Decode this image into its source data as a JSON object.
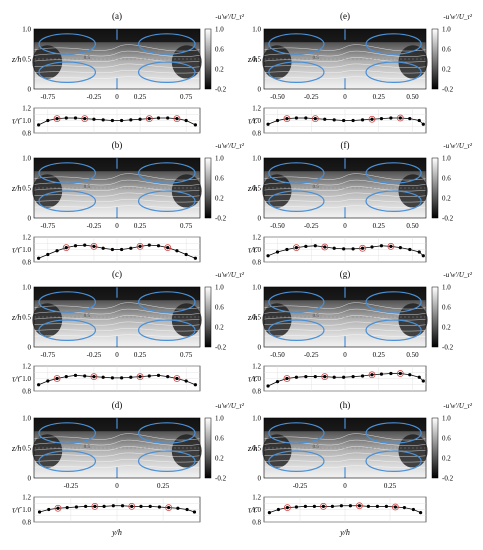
{
  "colors": {
    "vortex_outline": "#4a90d6",
    "marker_edge": "#000000",
    "marker_highlight": "#d23c3c",
    "contour_line": "#ffffff",
    "background": "#ffffff"
  },
  "colorbar": {
    "title": "-u'w'/U_τ²",
    "ticks": [
      "1.0",
      "0.6",
      "0.2",
      "-0.2"
    ],
    "range": [
      -0.2,
      1.0
    ],
    "colormap": "gray"
  },
  "axis_labels": {
    "z": "z/h",
    "ratio": "τ/τ̄",
    "y": "y/h"
  },
  "chart_data": [
    {
      "type": "heatmap",
      "panel": "(a)",
      "xticks": [
        "-0.75",
        "-0.25",
        "0",
        "0.25",
        "0.75"
      ],
      "xtick_values": [
        -0.75,
        -0.25,
        0,
        0.25,
        0.75
      ],
      "xlim": [
        -0.9,
        0.9
      ],
      "zticks": [
        "1.0",
        "0.5",
        "0"
      ],
      "ylim": [
        0,
        1
      ],
      "ratio_ticks": [
        "1.2",
        "1.0",
        "0.8"
      ],
      "ratio_lim": [
        0.8,
        1.2
      ],
      "ratio_x": [
        -0.85,
        -0.75,
        -0.65,
        -0.55,
        -0.45,
        -0.35,
        -0.25,
        -0.15,
        -0.05,
        0.05,
        0.15,
        0.25,
        0.35,
        0.45,
        0.55,
        0.65,
        0.75,
        0.85
      ],
      "ratio_y": [
        0.93,
        1.0,
        1.03,
        1.04,
        1.04,
        1.03,
        1.02,
        1.01,
        1.0,
        1.0,
        1.01,
        1.02,
        1.03,
        1.04,
        1.04,
        1.03,
        1.0,
        0.93
      ],
      "highlight_x": [
        -0.65,
        -0.35,
        0.35,
        0.65
      ],
      "contour_labels": [
        "0.5"
      ]
    },
    {
      "type": "heatmap",
      "panel": "(b)",
      "xticks": [
        "-0.75",
        "-0.25",
        "0",
        "0.25",
        "0.75"
      ],
      "xtick_values": [
        -0.75,
        -0.25,
        0,
        0.25,
        0.75
      ],
      "xlim": [
        -0.9,
        0.9
      ],
      "zticks": [
        "1.0",
        "0.5",
        "0"
      ],
      "ylim": [
        0,
        1
      ],
      "ratio_ticks": [
        "1.2",
        "1.0",
        "0.8"
      ],
      "ratio_lim": [
        0.8,
        1.2
      ],
      "ratio_x": [
        -0.85,
        -0.75,
        -0.65,
        -0.55,
        -0.45,
        -0.35,
        -0.25,
        -0.15,
        -0.05,
        0.05,
        0.15,
        0.25,
        0.35,
        0.45,
        0.55,
        0.65,
        0.75,
        0.85
      ],
      "ratio_y": [
        0.86,
        0.92,
        0.98,
        1.03,
        1.06,
        1.07,
        1.05,
        1.02,
        1.0,
        1.0,
        1.02,
        1.05,
        1.07,
        1.06,
        1.03,
        0.98,
        0.92,
        0.86
      ],
      "highlight_x": [
        -0.55,
        -0.25,
        0.25,
        0.55
      ],
      "contour_labels": [
        "0.5"
      ]
    },
    {
      "type": "heatmap",
      "panel": "(c)",
      "xticks": [
        "-0.75",
        "-0.25",
        "0",
        "0.25",
        "0.75"
      ],
      "xtick_values": [
        -0.75,
        -0.25,
        0,
        0.25,
        0.75
      ],
      "xlim": [
        -0.9,
        0.9
      ],
      "zticks": [
        "1.0",
        "0.5",
        "0"
      ],
      "ylim": [
        0,
        1
      ],
      "ratio_ticks": [
        "1.2",
        "1.0",
        "0.8"
      ],
      "ratio_lim": [
        0.8,
        1.2
      ],
      "ratio_x": [
        -0.85,
        -0.75,
        -0.65,
        -0.55,
        -0.45,
        -0.35,
        -0.25,
        -0.15,
        -0.05,
        0.05,
        0.15,
        0.25,
        0.35,
        0.45,
        0.55,
        0.65,
        0.75,
        0.85
      ],
      "ratio_y": [
        0.9,
        0.96,
        1.0,
        1.03,
        1.05,
        1.04,
        1.03,
        1.02,
        1.01,
        1.01,
        1.02,
        1.03,
        1.04,
        1.05,
        1.03,
        1.0,
        0.96,
        0.9
      ],
      "highlight_x": [
        -0.65,
        -0.25,
        0.25,
        0.65
      ],
      "contour_labels": [
        "0.5"
      ]
    },
    {
      "type": "heatmap",
      "panel": "(d)",
      "xticks": [
        "-0.25",
        "0",
        "0.25"
      ],
      "xtick_values": [
        -0.25,
        0,
        0.25
      ],
      "xlim": [
        -0.45,
        0.45
      ],
      "zticks": [
        "1.0",
        "0.5",
        "0"
      ],
      "ylim": [
        0,
        1
      ],
      "ratio_ticks": [
        "1.2",
        "1.0",
        "0.8"
      ],
      "ratio_lim": [
        0.8,
        1.2
      ],
      "ratio_x": [
        -0.42,
        -0.37,
        -0.32,
        -0.27,
        -0.22,
        -0.17,
        -0.12,
        -0.07,
        -0.02,
        0.03,
        0.08,
        0.13,
        0.18,
        0.23,
        0.28,
        0.33,
        0.38,
        0.42
      ],
      "ratio_y": [
        0.96,
        1.0,
        1.02,
        1.03,
        1.04,
        1.05,
        1.05,
        1.05,
        1.06,
        1.06,
        1.05,
        1.05,
        1.05,
        1.04,
        1.03,
        1.02,
        1.0,
        0.96
      ],
      "highlight_x": [
        -0.32,
        -0.12,
        0.08,
        0.28
      ],
      "contour_labels": [
        "0.5"
      ]
    },
    {
      "type": "heatmap",
      "panel": "(e)",
      "xticks": [
        "-0.50",
        "-0.25",
        "0",
        "0.25",
        "0.50"
      ],
      "xtick_values": [
        -0.5,
        -0.25,
        0,
        0.25,
        0.5
      ],
      "xlim": [
        -0.6,
        0.6
      ],
      "zticks": [
        "1.0",
        "0.5",
        "0"
      ],
      "ylim": [
        0,
        1
      ],
      "ratio_ticks": [
        "1.2",
        "1.0",
        "0.8"
      ],
      "ratio_lim": [
        0.8,
        1.2
      ],
      "ratio_x": [
        -0.57,
        -0.5,
        -0.43,
        -0.36,
        -0.29,
        -0.22,
        -0.15,
        -0.08,
        -0.01,
        0.06,
        0.13,
        0.2,
        0.27,
        0.34,
        0.41,
        0.48,
        0.55,
        0.58
      ],
      "ratio_y": [
        0.94,
        1.0,
        1.03,
        1.04,
        1.04,
        1.03,
        1.02,
        1.01,
        1.0,
        1.0,
        1.01,
        1.02,
        1.03,
        1.04,
        1.04,
        1.03,
        1.0,
        0.94
      ],
      "highlight_x": [
        -0.43,
        -0.22,
        0.2,
        0.41
      ],
      "contour_labels": [
        "0.5"
      ]
    },
    {
      "type": "heatmap",
      "panel": "(f)",
      "xticks": [
        "-0.50",
        "-0.25",
        "0",
        "0.25",
        "0.50"
      ],
      "xtick_values": [
        -0.5,
        -0.25,
        0,
        0.25,
        0.5
      ],
      "xlim": [
        -0.6,
        0.6
      ],
      "zticks": [
        "1.0",
        "0.5",
        "0"
      ],
      "ylim": [
        0,
        1
      ],
      "ratio_ticks": [
        "1.2",
        "1.0",
        "0.8"
      ],
      "ratio_lim": [
        0.8,
        1.2
      ],
      "ratio_x": [
        -0.57,
        -0.5,
        -0.43,
        -0.36,
        -0.29,
        -0.22,
        -0.15,
        -0.08,
        -0.01,
        0.06,
        0.13,
        0.2,
        0.27,
        0.34,
        0.41,
        0.48,
        0.55,
        0.58
      ],
      "ratio_y": [
        0.9,
        0.96,
        1.0,
        1.03,
        1.05,
        1.06,
        1.04,
        1.02,
        1.01,
        1.01,
        1.02,
        1.04,
        1.06,
        1.05,
        1.03,
        1.0,
        0.96,
        0.9
      ],
      "highlight_x": [
        -0.36,
        -0.15,
        0.13,
        0.34
      ],
      "contour_labels": [
        "0.5"
      ]
    },
    {
      "type": "heatmap",
      "panel": "(g)",
      "xticks": [
        "-0.50",
        "-0.25",
        "0",
        "0.25",
        "0.50"
      ],
      "xtick_values": [
        -0.5,
        -0.25,
        0,
        0.25,
        0.5
      ],
      "xlim": [
        -0.6,
        0.6
      ],
      "zticks": [
        "1.0",
        "0.5",
        "0"
      ],
      "ylim": [
        0,
        1
      ],
      "ratio_ticks": [
        "1.2",
        "1.0",
        "0.8"
      ],
      "ratio_lim": [
        0.8,
        1.2
      ],
      "ratio_x": [
        -0.57,
        -0.5,
        -0.43,
        -0.36,
        -0.29,
        -0.22,
        -0.15,
        -0.08,
        -0.01,
        0.06,
        0.13,
        0.2,
        0.27,
        0.34,
        0.41,
        0.48,
        0.55,
        0.58
      ],
      "ratio_y": [
        0.88,
        0.95,
        1.0,
        1.02,
        1.03,
        1.03,
        1.03,
        1.02,
        1.02,
        1.03,
        1.04,
        1.06,
        1.07,
        1.08,
        1.08,
        1.06,
        1.02,
        0.96
      ],
      "highlight_x": [
        -0.43,
        -0.15,
        0.2,
        0.41
      ],
      "contour_labels": [
        "0.5"
      ]
    },
    {
      "type": "heatmap",
      "panel": "(h)",
      "xticks": [
        "-0.25",
        "0",
        "0.25"
      ],
      "xtick_values": [
        -0.25,
        0,
        0.25
      ],
      "xlim": [
        -0.45,
        0.45
      ],
      "zticks": [
        "1.0",
        "0.5",
        "0"
      ],
      "ylim": [
        0,
        1
      ],
      "ratio_ticks": [
        "1.2",
        "1.0",
        "0.8"
      ],
      "ratio_lim": [
        0.8,
        1.2
      ],
      "ratio_x": [
        -0.42,
        -0.37,
        -0.32,
        -0.27,
        -0.22,
        -0.17,
        -0.12,
        -0.07,
        -0.02,
        0.03,
        0.08,
        0.13,
        0.18,
        0.23,
        0.28,
        0.33,
        0.38,
        0.42
      ],
      "ratio_y": [
        0.95,
        1.0,
        1.03,
        1.04,
        1.05,
        1.05,
        1.05,
        1.05,
        1.06,
        1.06,
        1.06,
        1.05,
        1.05,
        1.05,
        1.04,
        1.03,
        1.0,
        0.95
      ],
      "highlight_x": [
        -0.32,
        -0.12,
        0.08,
        0.28
      ],
      "contour_labels": [
        "0.5"
      ]
    }
  ]
}
